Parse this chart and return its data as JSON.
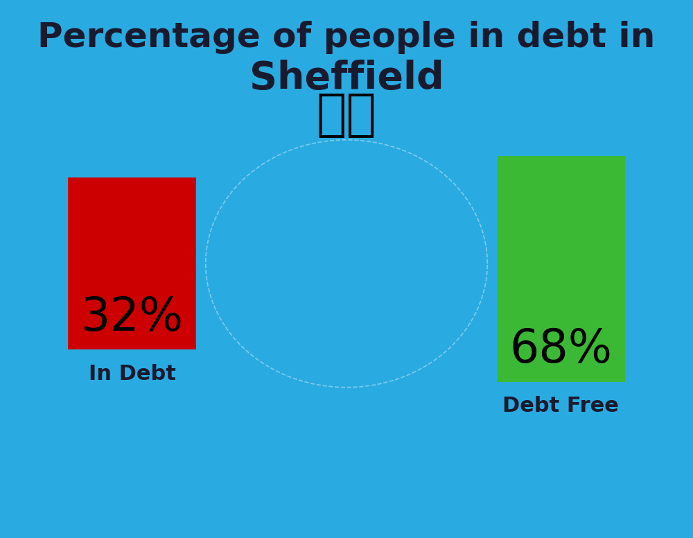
{
  "title_line1": "Percentage of people in debt in",
  "title_line2": "Sheffield",
  "background_color": "#29ABE2",
  "bar1_color": "#CC0000",
  "bar2_color": "#3CB934",
  "bar1_value": "32%",
  "bar2_value": "68%",
  "bar1_label": "In Debt",
  "bar2_label": "Debt Free",
  "title_color": "#1a1a2e",
  "label_color": "#1a1a2e",
  "value_color": "#000000",
  "title_fontsize": 36,
  "subtitle_fontsize": 40,
  "value_fontsize": 48,
  "label_fontsize": 22,
  "flag_fontsize": 52
}
